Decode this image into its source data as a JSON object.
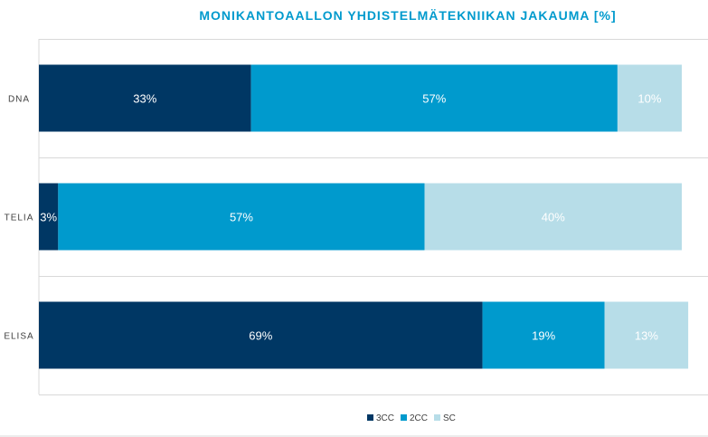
{
  "chart_data": {
    "type": "bar",
    "orientation": "horizontal",
    "stacked": true,
    "title": "MONIKANTOAALLON YHDISTELMÄTEKNIIKAN JAKAUMA [%]",
    "categories": [
      "DNA",
      "TELIA",
      "ELISA"
    ],
    "series": [
      {
        "name": "3CC",
        "values": [
          33,
          3,
          69
        ],
        "labels": [
          "33%",
          "3%",
          "69%"
        ],
        "color": "#003764"
      },
      {
        "name": "2CC",
        "values": [
          57,
          57,
          19
        ],
        "labels": [
          "57%",
          "57%",
          "19%"
        ],
        "color": "#009ACD"
      },
      {
        "name": "SC",
        "values": [
          10,
          40,
          13
        ],
        "labels": [
          "10%",
          "40%",
          "13%"
        ],
        "color": "#B7DDE8"
      }
    ],
    "xlim": [
      0,
      100
    ],
    "grid": true,
    "legend_position": "bottom",
    "title_color": "#009ACD",
    "label_color": "#ffffff",
    "category_label_color": "#404040",
    "grid_color": "#d9d9d9"
  }
}
